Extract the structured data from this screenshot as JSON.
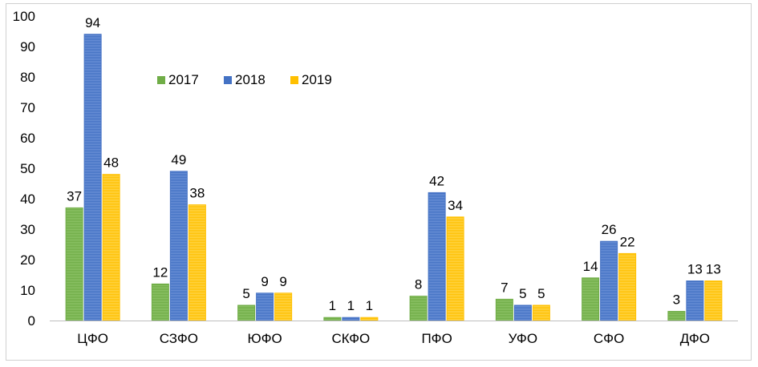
{
  "chart_data": {
    "type": "bar",
    "categories": [
      "ЦФО",
      "СЗФО",
      "ЮФО",
      "СКФО",
      "ПФО",
      "УФО",
      "СФО",
      "ДФО"
    ],
    "series": [
      {
        "name": "2017",
        "color": "#70ad47",
        "values": [
          37,
          12,
          5,
          1,
          8,
          7,
          14,
          3
        ]
      },
      {
        "name": "2018",
        "color": "#4472c4",
        "values": [
          94,
          49,
          9,
          1,
          42,
          5,
          26,
          13
        ]
      },
      {
        "name": "2019",
        "color": "#ffc000",
        "values": [
          48,
          38,
          9,
          1,
          34,
          5,
          22,
          13
        ]
      }
    ],
    "ylim": [
      0,
      100
    ],
    "yticks": [
      "0",
      "10",
      "20",
      "30",
      "40",
      "50",
      "60",
      "70",
      "80",
      "90",
      "100"
    ],
    "grid": false,
    "legend_position": "top-left",
    "data_labels": true
  }
}
